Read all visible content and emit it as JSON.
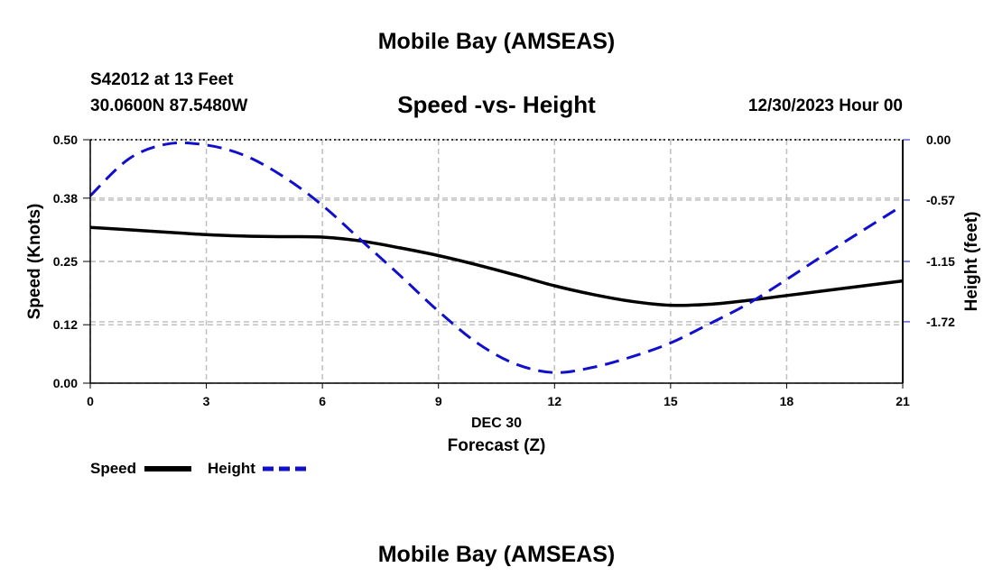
{
  "header": {
    "title": "Mobile Bay (AMSEAS)",
    "station_line": "S42012 at 13 Feet",
    "coords_line": "30.0600N  87.5480W",
    "date_line": "12/30/2023 Hour 00",
    "bottom_title": "Mobile Bay (AMSEAS)"
  },
  "legend": {
    "speed": "Speed",
    "height": "Height"
  },
  "colors": {
    "speed": "#000000",
    "height": "#1010cc",
    "grid": "#c0c0c0"
  },
  "chart_data": {
    "type": "line",
    "title": "Speed -vs- Height",
    "xlabel": "Forecast (Z)",
    "xsublabel": "DEC 30",
    "ylabel": "Speed (Knots)",
    "y2label": "Height (feet)",
    "x": [
      0,
      1,
      2,
      3,
      4,
      5,
      6,
      7,
      8,
      9,
      10,
      11,
      12,
      13,
      14,
      15,
      16,
      17,
      18,
      19,
      20,
      21
    ],
    "xlim": [
      0,
      21
    ],
    "xticks": [
      "0",
      "3",
      "6",
      "9",
      "12",
      "15",
      "18",
      "21"
    ],
    "ylim": [
      0,
      0.5
    ],
    "yticks": [
      "0.00",
      "0.12",
      "0.25",
      "0.38",
      "0.50"
    ],
    "y2lim": [
      -2.3,
      0
    ],
    "y2ticks": [
      "0.00",
      "-0.57",
      "-1.15",
      "-1.72"
    ],
    "series": [
      {
        "name": "Speed",
        "axis": "left",
        "values": [
          0.32,
          0.315,
          0.31,
          0.305,
          0.302,
          0.301,
          0.3,
          0.292,
          0.278,
          0.262,
          0.243,
          0.222,
          0.2,
          0.182,
          0.168,
          0.16,
          0.162,
          0.17,
          0.18,
          0.19,
          0.2,
          0.21
        ]
      },
      {
        "name": "Height",
        "axis": "right",
        "values": [
          -0.53,
          -0.18,
          -0.04,
          -0.05,
          -0.15,
          -0.35,
          -0.62,
          -0.95,
          -1.28,
          -1.62,
          -1.92,
          -2.12,
          -2.2,
          -2.15,
          -2.05,
          -1.92,
          -1.74,
          -1.55,
          -1.32,
          -1.08,
          -0.85,
          -0.62
        ]
      }
    ]
  }
}
